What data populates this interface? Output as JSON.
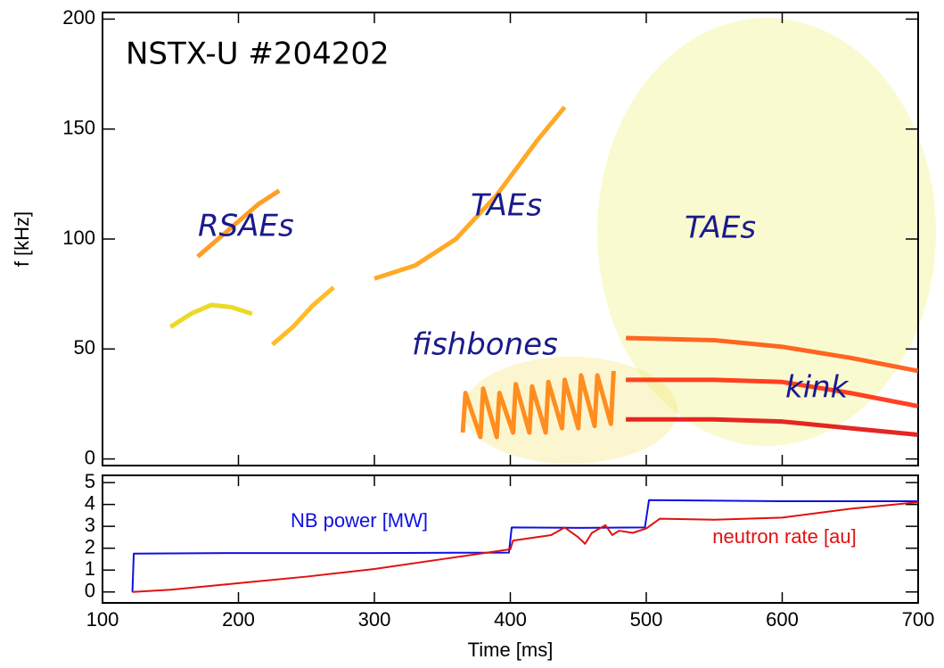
{
  "chart_data": [
    {
      "type": "line",
      "ylabel": "f [kHz]",
      "xlim": [
        100,
        700
      ],
      "xticks": [
        100,
        200,
        300,
        400,
        500,
        600,
        700
      ],
      "ylim": [
        -3,
        203
      ],
      "yticks": [
        0,
        50,
        100,
        150,
        200
      ],
      "annotations": [
        "NSTX-U #204202",
        "RSAEs",
        "TAEs",
        "TAEs",
        "fishbones",
        "kink"
      ],
      "series": [
        {
          "color": "#e8d400",
          "x": [
            150,
            165,
            180,
            195,
            210
          ],
          "values": [
            60,
            66,
            70,
            69,
            66
          ]
        },
        {
          "color": "#ff8c00",
          "x": [
            170,
            185,
            200,
            215,
            230
          ],
          "values": [
            92,
            100,
            108,
            116,
            122
          ]
        },
        {
          "color": "#ffb000",
          "x": [
            225,
            240,
            255,
            270
          ],
          "values": [
            52,
            60,
            70,
            78
          ]
        },
        {
          "color": "#ff9a00",
          "x": [
            300,
            330,
            360,
            390,
            420,
            440
          ],
          "values": [
            82,
            88,
            100,
            120,
            145,
            160
          ]
        },
        {
          "color": "#ff7a00",
          "x": [
            365,
            367,
            378,
            380,
            390,
            392,
            402,
            404,
            414,
            416,
            426,
            428,
            438,
            440,
            450,
            452,
            462,
            464,
            474,
            476
          ],
          "values": [
            12,
            30,
            10,
            32,
            10,
            30,
            12,
            34,
            12,
            33,
            12,
            35,
            14,
            36,
            14,
            38,
            15,
            38,
            16,
            40
          ]
        },
        {
          "color": "#ff4a00",
          "x": [
            485,
            550,
            600,
            650,
            700
          ],
          "values": [
            55,
            54,
            51,
            46,
            40
          ]
        },
        {
          "color": "#ff2000",
          "x": [
            485,
            550,
            600,
            650,
            700
          ],
          "values": [
            36,
            36,
            35,
            30,
            24
          ]
        },
        {
          "color": "#e00000",
          "x": [
            485,
            550,
            600,
            650,
            700
          ],
          "values": [
            18,
            18,
            17,
            14,
            11
          ]
        }
      ]
    },
    {
      "type": "line",
      "xlabel": "Time [ms]",
      "xlim": [
        100,
        700
      ],
      "xticks": [
        100,
        200,
        300,
        400,
        500,
        600,
        700
      ],
      "ylim": [
        -0.5,
        5.33
      ],
      "yticks": [
        0,
        1,
        2,
        3,
        4,
        5
      ],
      "series": [
        {
          "name": "NB power [MW]",
          "color": "#1010e0",
          "x": [
            122,
            123,
            200,
            300,
            399,
            401,
            450,
            499,
            502,
            600,
            700
          ],
          "values": [
            0,
            1.75,
            1.78,
            1.78,
            1.8,
            2.95,
            2.93,
            2.95,
            4.2,
            4.15,
            4.15
          ]
        },
        {
          "name": "neutron rate [au]",
          "color": "#e01010",
          "x": [
            122,
            150,
            200,
            250,
            300,
            350,
            400,
            402,
            430,
            440,
            450,
            455,
            460,
            470,
            475,
            480,
            490,
            500,
            510,
            550,
            600,
            650,
            700
          ],
          "values": [
            0,
            0.1,
            0.4,
            0.7,
            1.05,
            1.5,
            1.95,
            2.35,
            2.6,
            2.95,
            2.5,
            2.2,
            2.7,
            3.05,
            2.6,
            2.8,
            2.7,
            2.9,
            3.35,
            3.3,
            3.4,
            3.8,
            4.1
          ]
        }
      ]
    }
  ]
}
